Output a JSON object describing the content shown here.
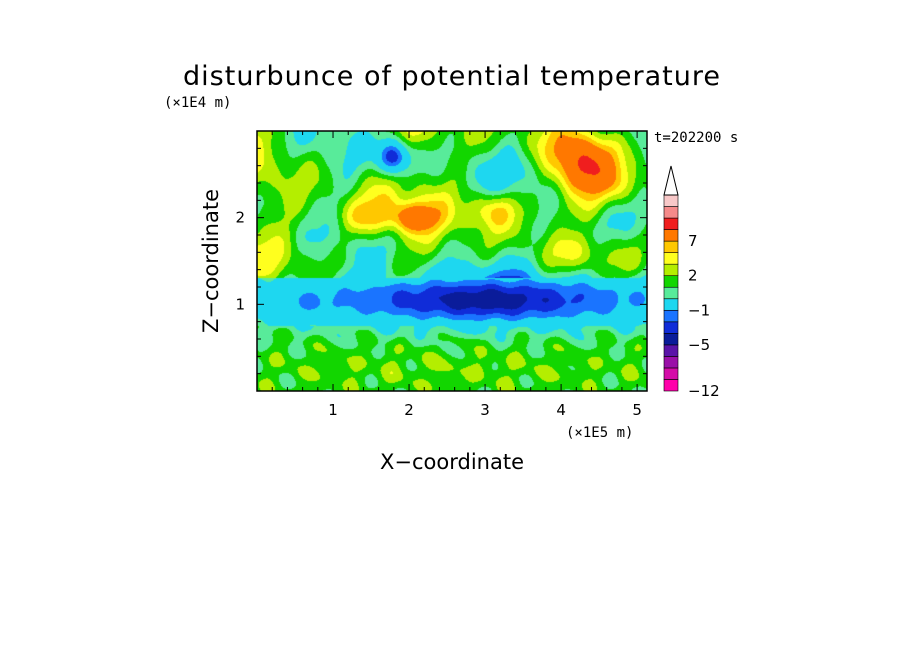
{
  "chart_data": {
    "type": "heatmap",
    "title": "disturbunce of potential temperature",
    "xlabel": "X−coordinate",
    "ylabel": "Z−coordinate",
    "x_unit": "(×1E5 m)",
    "y_unit": "(×1E4 m)",
    "time_label": "t=202200 s",
    "xlim": [
      0,
      5.13
    ],
    "ylim": [
      0,
      3.0
    ],
    "x_ticks": [
      1,
      2,
      3,
      4,
      5
    ],
    "y_ticks": [
      1,
      2
    ],
    "x_tick_labels": [
      "1",
      "2",
      "3",
      "4",
      "5"
    ],
    "y_tick_labels": [
      "1",
      "2"
    ],
    "colorbar": {
      "levels": [
        -12,
        -11,
        -9,
        -7,
        -5,
        -4,
        -3,
        -1,
        0,
        1,
        2,
        3,
        4,
        7,
        8,
        9
      ],
      "labeled_ticks": [
        -12,
        -5,
        -1,
        2,
        7
      ],
      "tick_labels": [
        "−12",
        "−5",
        "−1",
        "2",
        "7"
      ],
      "colors": [
        "#ff00aa",
        "#d40ca8",
        "#9a10a8",
        "#5a14a8",
        "#0a1c9a",
        "#102cd8",
        "#1a74ff",
        "#1ed7f0",
        "#58eb9a",
        "#12d600",
        "#b4ee00",
        "#ffff1e",
        "#ffc800",
        "#ff7800",
        "#f01e1e",
        "#f58a8a",
        "#f8c8c8"
      ],
      "top_extension": true
    },
    "features": [
      {
        "cx": 3.0,
        "cz": 1.05,
        "rx": 3.0,
        "rz": 0.32,
        "amp": -4.6
      },
      {
        "cx": 3.0,
        "cz": 1.05,
        "rx": 0.8,
        "rz": 0.18,
        "amp": -1.2
      },
      {
        "cx": 0.4,
        "cz": 1.0,
        "rx": 0.5,
        "rz": 0.2,
        "amp": -0.8
      },
      {
        "cx": 1.8,
        "cz": 2.7,
        "rx": 0.2,
        "rz": 0.2,
        "amp": -6.0
      },
      {
        "cx": 4.3,
        "cz": 2.6,
        "rx": 0.35,
        "rz": 0.35,
        "amp": 6.0
      },
      {
        "cx": 1.5,
        "cz": 2.0,
        "rx": 0.5,
        "rz": 0.22,
        "amp": 3.0
      },
      {
        "cx": 3.1,
        "cz": 2.1,
        "rx": 0.35,
        "rz": 0.22,
        "amp": 3.0
      },
      {
        "cx": 2.1,
        "cz": 2.0,
        "rx": 0.25,
        "rz": 0.15,
        "amp": 3.5
      },
      {
        "cx": 4.8,
        "cz": 2.35,
        "rx": 0.3,
        "rz": 0.25,
        "amp": 2.0
      },
      {
        "cx": 3.5,
        "cz": 2.55,
        "rx": 0.4,
        "rz": 0.3,
        "amp": -1.5
      },
      {
        "cx": 4.2,
        "cz": 1.85,
        "rx": 0.5,
        "rz": 0.2,
        "amp": -1.5
      },
      {
        "cx": 0.6,
        "cz": 2.5,
        "rx": 0.7,
        "rz": 0.4,
        "amp": -0.5
      },
      {
        "cx": 2.5,
        "cz": 0.25,
        "rx": 2.5,
        "rz": 0.25,
        "amp": 0.6
      }
    ]
  }
}
